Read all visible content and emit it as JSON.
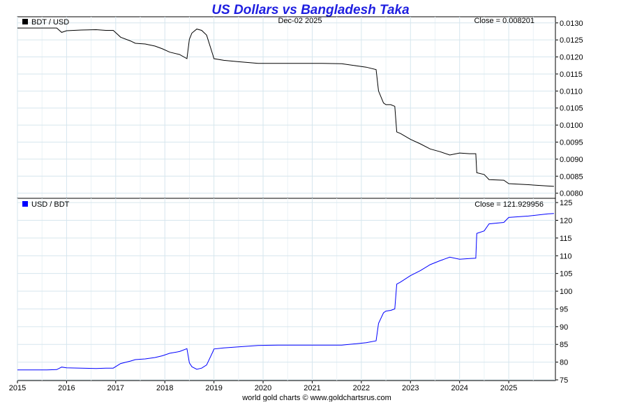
{
  "title": "US Dollars vs Bangladesh Taka",
  "date_label": "Dec-02  2025",
  "footer": "world gold charts © www.goldchartsrus.com",
  "colors": {
    "title": "#1f1fe0",
    "grid": "#d6e6ee",
    "top_series": "#000000",
    "bottom_series": "#0000ff"
  },
  "x_ticks": [
    "2015",
    "2016",
    "2017",
    "2018",
    "2019",
    "2020",
    "2021",
    "2022",
    "2023",
    "2024",
    "2025"
  ],
  "chart_data": [
    {
      "type": "line",
      "series": [
        {
          "name": "BDT / USD"
        }
      ],
      "close_label": "Close = 0.008201",
      "x": [
        2015.0,
        2015.3,
        2015.6,
        2015.8,
        2015.9,
        2016.0,
        2016.3,
        2016.6,
        2016.8,
        2016.95,
        2017.1,
        2017.3,
        2017.4,
        2017.6,
        2017.8,
        2017.95,
        2018.1,
        2018.3,
        2018.45,
        2018.5,
        2018.55,
        2018.65,
        2018.75,
        2018.85,
        2018.98,
        2019.0,
        2019.2,
        2019.5,
        2019.9,
        2020.3,
        2020.8,
        2021.2,
        2021.6,
        2021.9,
        2022.1,
        2022.3,
        2022.35,
        2022.45,
        2022.5,
        2022.6,
        2022.68,
        2022.72,
        2022.8,
        2023.0,
        2023.2,
        2023.4,
        2023.6,
        2023.8,
        2024.0,
        2024.2,
        2024.33,
        2024.35,
        2024.5,
        2024.6,
        2024.9,
        2025.0,
        2025.4,
        2025.8,
        2025.92
      ],
      "values": [
        0.01285,
        0.01285,
        0.01285,
        0.01285,
        0.01272,
        0.01277,
        0.01279,
        0.0128,
        0.01278,
        0.01278,
        0.01258,
        0.01247,
        0.0124,
        0.01238,
        0.01232,
        0.01224,
        0.01214,
        0.01207,
        0.01195,
        0.01252,
        0.0127,
        0.01282,
        0.01278,
        0.01264,
        0.01205,
        0.01195,
        0.0119,
        0.01186,
        0.01181,
        0.01181,
        0.01181,
        0.01181,
        0.0118,
        0.01174,
        0.0117,
        0.01163,
        0.011,
        0.01065,
        0.0106,
        0.0106,
        0.01055,
        0.0098,
        0.00975,
        0.00958,
        0.00945,
        0.0093,
        0.00922,
        0.00912,
        0.00918,
        0.00916,
        0.00916,
        0.0086,
        0.00855,
        0.0084,
        0.00838,
        0.00828,
        0.00825,
        0.00821,
        0.008201
      ],
      "ylim": [
        0.00785,
        0.01318
      ],
      "yticks": [
        "0.0080",
        "0.0085",
        "0.0090",
        "0.0095",
        "0.0100",
        "0.0105",
        "0.0110",
        "0.0115",
        "0.0120",
        "0.0125",
        "0.0130"
      ],
      "ytick_values": [
        0.008,
        0.0085,
        0.009,
        0.0095,
        0.01,
        0.0105,
        0.011,
        0.0115,
        0.012,
        0.0125,
        0.013
      ],
      "xlim": [
        2015.0,
        2025.95
      ],
      "grid": true,
      "legend": "top-left"
    },
    {
      "type": "line",
      "series": [
        {
          "name": "USD / BDT"
        }
      ],
      "close_label": "Close = 121.929956",
      "x": [
        2015.0,
        2015.3,
        2015.6,
        2015.8,
        2015.9,
        2016.0,
        2016.3,
        2016.6,
        2016.8,
        2016.95,
        2017.1,
        2017.3,
        2017.4,
        2017.6,
        2017.8,
        2017.95,
        2018.1,
        2018.3,
        2018.45,
        2018.5,
        2018.55,
        2018.65,
        2018.75,
        2018.85,
        2018.98,
        2019.0,
        2019.2,
        2019.5,
        2019.9,
        2020.3,
        2020.8,
        2021.2,
        2021.6,
        2021.9,
        2022.1,
        2022.3,
        2022.35,
        2022.45,
        2022.5,
        2022.6,
        2022.68,
        2022.72,
        2022.8,
        2023.0,
        2023.2,
        2023.4,
        2023.6,
        2023.8,
        2024.0,
        2024.2,
        2024.33,
        2024.35,
        2024.5,
        2024.6,
        2024.9,
        2025.0,
        2025.4,
        2025.8,
        2025.92
      ],
      "values": [
        77.8,
        77.8,
        77.8,
        77.9,
        78.6,
        78.4,
        78.3,
        78.2,
        78.3,
        78.3,
        79.6,
        80.3,
        80.7,
        80.9,
        81.3,
        81.8,
        82.5,
        83.0,
        83.8,
        79.8,
        78.7,
        78.0,
        78.3,
        79.2,
        83.0,
        83.7,
        84.0,
        84.3,
        84.7,
        84.8,
        84.8,
        84.8,
        84.8,
        85.2,
        85.5,
        86.0,
        90.9,
        93.9,
        94.4,
        94.6,
        95.0,
        102.0,
        102.6,
        104.4,
        105.8,
        107.5,
        108.6,
        109.6,
        109.0,
        109.2,
        109.3,
        116.3,
        117.0,
        119.0,
        119.4,
        120.8,
        121.2,
        121.8,
        121.93
      ],
      "ylim": [
        74.8,
        126.2
      ],
      "yticks": [
        "75",
        "80",
        "85",
        "90",
        "95",
        "100",
        "105",
        "110",
        "115",
        "120",
        "125"
      ],
      "ytick_values": [
        75,
        80,
        85,
        90,
        95,
        100,
        105,
        110,
        115,
        120,
        125
      ],
      "xlim": [
        2015.0,
        2025.95
      ],
      "grid": true,
      "legend": "top-left"
    }
  ]
}
